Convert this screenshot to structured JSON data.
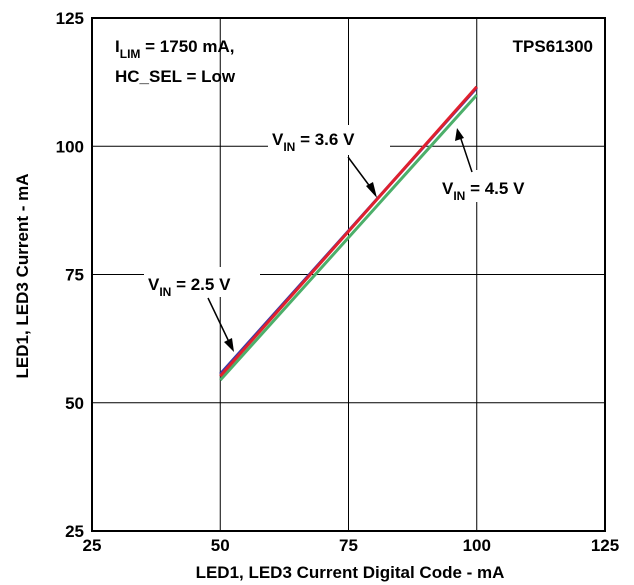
{
  "chart_data": {
    "type": "line",
    "xlabel": "LED1, LED3 Current Digital Code - mA",
    "ylabel": "LED1, LED3 Current - mA",
    "xlim": [
      25,
      125
    ],
    "ylim": [
      25,
      125
    ],
    "x_ticks": [
      "25",
      "50",
      "75",
      "100",
      "125"
    ],
    "y_ticks": [
      "25",
      "50",
      "75",
      "100",
      "125"
    ],
    "grid": true,
    "device_label": "TPS61300",
    "conditions": {
      "line1_prefix": "I",
      "line1_sub": "LIM",
      "line1_rest": " = 1750 mA,",
      "line2": "HC_SEL = Low"
    },
    "series": [
      {
        "name_prefix": "V",
        "name_sub": "IN",
        "name_rest": " = 2.5 V",
        "color": "#3a3aa8",
        "x": [
          50,
          100
        ],
        "y": [
          55.6,
          111.4
        ]
      },
      {
        "name_prefix": "V",
        "name_sub": "IN",
        "name_rest": " = 3.6 V",
        "color": "#e0202e",
        "x": [
          50,
          100
        ],
        "y": [
          55.2,
          111.6
        ]
      },
      {
        "name_prefix": "V",
        "name_sub": "IN",
        "name_rest": " = 4.5 V",
        "color": "#4caf6a",
        "x": [
          50,
          100
        ],
        "y": [
          54.4,
          110.0
        ]
      }
    ]
  }
}
